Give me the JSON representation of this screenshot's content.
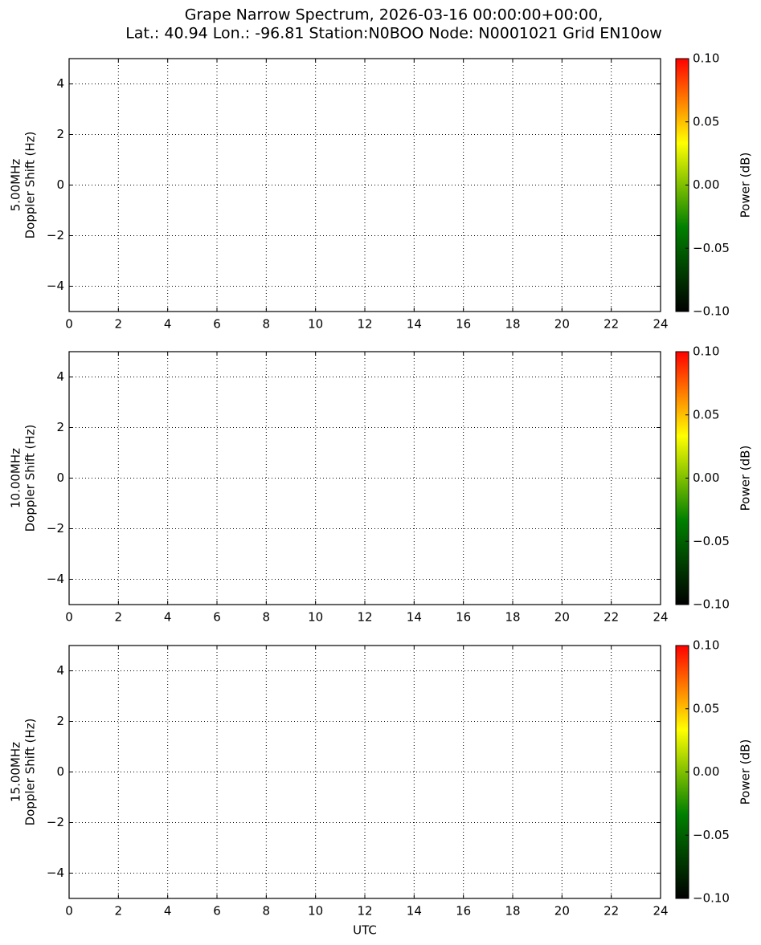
{
  "title": [
    "Grape Narrow Spectrum, 2026-03-16 00:00:00+00:00,",
    "Lat.: 40.94 Lon.: -96.81 Station:N0BOO Node: N0001021 Grid EN10ow"
  ],
  "chart_data": [
    {
      "type": "spectrogram",
      "ylabel": [
        "5.00MHz",
        "Doppler Shift (Hz)"
      ],
      "xlim": [
        0,
        24
      ],
      "xticks": [
        0,
        2,
        4,
        6,
        8,
        10,
        12,
        14,
        16,
        18,
        20,
        22,
        24
      ],
      "ylim": [
        -5,
        5
      ],
      "yticks": [
        {
          "value": -4,
          "label": "−4"
        },
        {
          "value": -2,
          "label": "−2"
        },
        0,
        2,
        4
      ],
      "grid": true,
      "colorbar": {
        "label": "Power (dB)",
        "lim": [
          -0.1,
          0.1
        ],
        "colormap": [
          "#000000",
          "#008000",
          "#ffff00",
          "#ff0000"
        ],
        "ticks": [
          {
            "value": -0.1,
            "label": "−0.10"
          },
          {
            "value": -0.05,
            "label": "−0.05"
          },
          {
            "value": 0,
            "label": "0.00"
          },
          {
            "value": 0.05,
            "label": "0.05"
          },
          {
            "value": 0.1,
            "label": "0.10"
          }
        ]
      }
    },
    {
      "type": "spectrogram",
      "ylabel": [
        "10.00MHz",
        "Doppler Shift (Hz)"
      ],
      "xlim": [
        0,
        24
      ],
      "xticks": [
        0,
        2,
        4,
        6,
        8,
        10,
        12,
        14,
        16,
        18,
        20,
        22,
        24
      ],
      "ylim": [
        -5,
        5
      ],
      "yticks": [
        {
          "value": -4,
          "label": "−4"
        },
        {
          "value": -2,
          "label": "−2"
        },
        0,
        2,
        4
      ],
      "grid": true,
      "colorbar": {
        "label": "Power (dB)",
        "lim": [
          -0.1,
          0.1
        ],
        "colormap": [
          "#000000",
          "#008000",
          "#ffff00",
          "#ff0000"
        ],
        "ticks": [
          {
            "value": -0.1,
            "label": "−0.10"
          },
          {
            "value": -0.05,
            "label": "−0.05"
          },
          {
            "value": 0,
            "label": "0.00"
          },
          {
            "value": 0.05,
            "label": "0.05"
          },
          {
            "value": 0.1,
            "label": "0.10"
          }
        ]
      }
    },
    {
      "type": "spectrogram",
      "ylabel": [
        "15.00MHz",
        "Doppler Shift (Hz)"
      ],
      "xlabel": "UTC",
      "xlim": [
        0,
        24
      ],
      "xticks": [
        0,
        2,
        4,
        6,
        8,
        10,
        12,
        14,
        16,
        18,
        20,
        22,
        24
      ],
      "ylim": [
        -5,
        5
      ],
      "yticks": [
        {
          "value": -4,
          "label": "−4"
        },
        {
          "value": -2,
          "label": "−2"
        },
        0,
        2,
        4
      ],
      "grid": true,
      "colorbar": {
        "label": "Power (dB)",
        "lim": [
          -0.1,
          0.1
        ],
        "colormap": [
          "#000000",
          "#008000",
          "#ffff00",
          "#ff0000"
        ],
        "ticks": [
          {
            "value": -0.1,
            "label": "−0.10"
          },
          {
            "value": -0.05,
            "label": "−0.05"
          },
          {
            "value": 0,
            "label": "0.00"
          },
          {
            "value": 0.05,
            "label": "0.05"
          },
          {
            "value": 0.1,
            "label": "0.10"
          }
        ]
      }
    }
  ]
}
